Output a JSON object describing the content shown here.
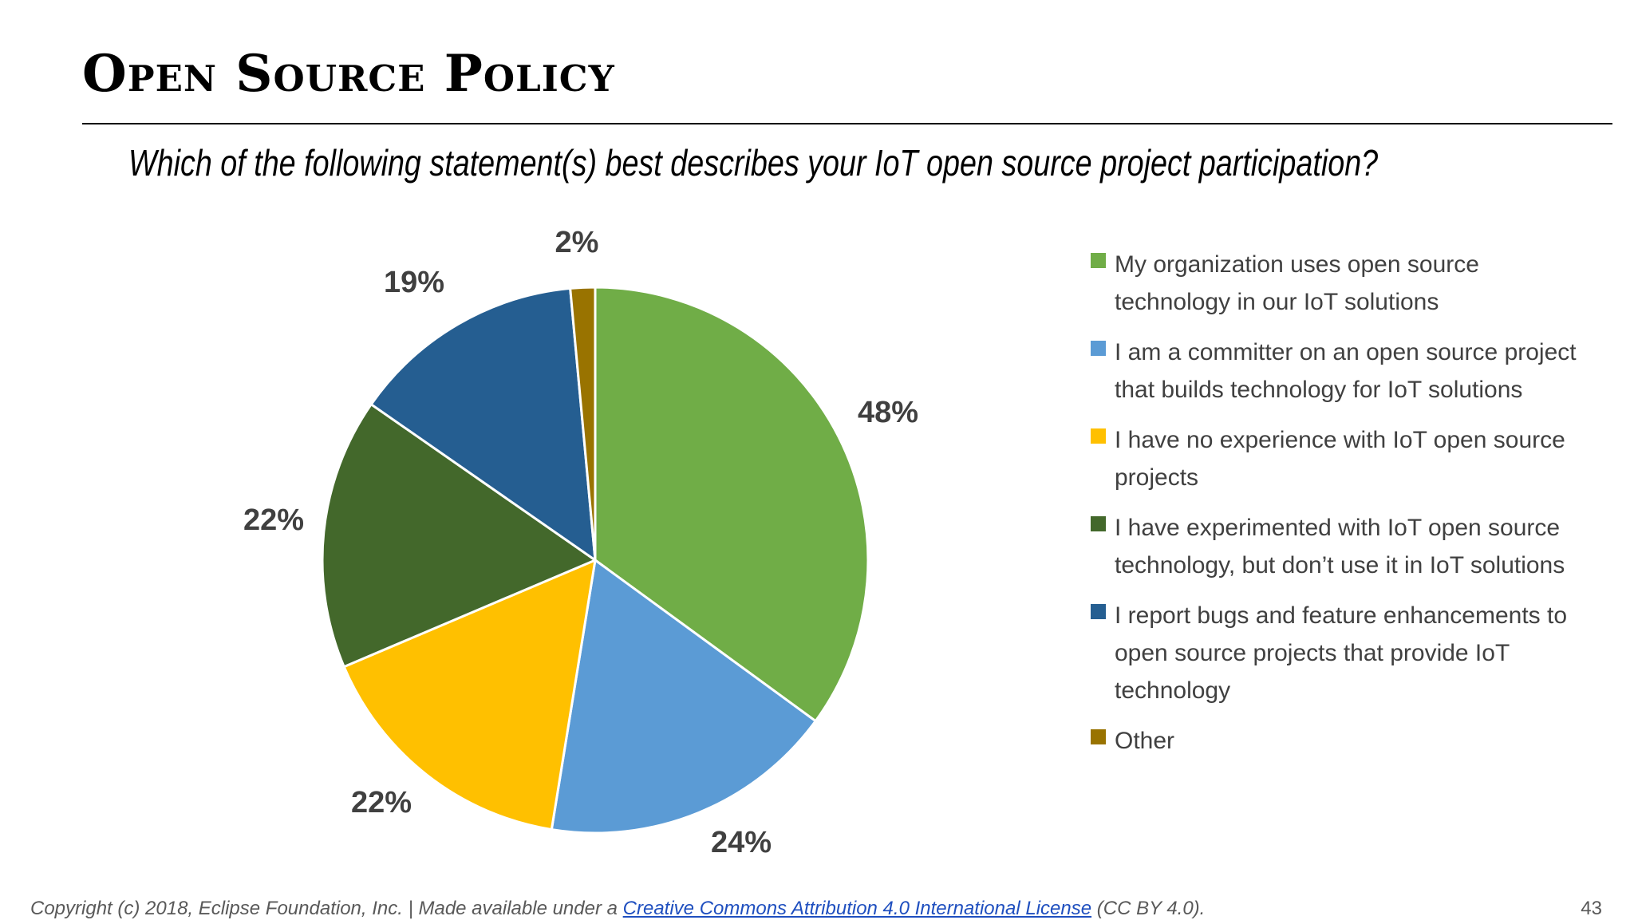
{
  "slide": {
    "title": "Open Source Policy",
    "page_number": "43"
  },
  "footer": {
    "copyright": "Copyright (c) 2018, Eclipse Foundation, Inc. | Made available under a ",
    "license_link": "Creative Commons Attribution 4.0 International License",
    "license_short": " (CC BY 4.0)."
  },
  "chart_data": {
    "type": "pie",
    "title": "Which of the following statement(s) best describes your IoT open source project participation?",
    "legend_position": "right",
    "slices": [
      {
        "name": "My organization uses open source technology in our IoT solutions",
        "value": 48,
        "label": "48%",
        "color": "#70ad47"
      },
      {
        "name": "I am a committer on an open source project that builds technology for IoT solutions",
        "value": 24,
        "label": "24%",
        "color": "#5b9bd5"
      },
      {
        "name": "I have no experience with IoT open source projects",
        "value": 22,
        "label": "22%",
        "color": "#ffc000"
      },
      {
        "name": "I have experimented with IoT open source technology, but don’t use it in IoT solutions",
        "value": 22,
        "label": "22%",
        "color": "#43682b"
      },
      {
        "name": "I report bugs and feature enhancements to open source projects that provide IoT technology",
        "value": 19,
        "label": "19%",
        "color": "#255e91"
      },
      {
        "name": "Other",
        "value": 2,
        "label": "2%",
        "color": "#997300"
      }
    ]
  }
}
